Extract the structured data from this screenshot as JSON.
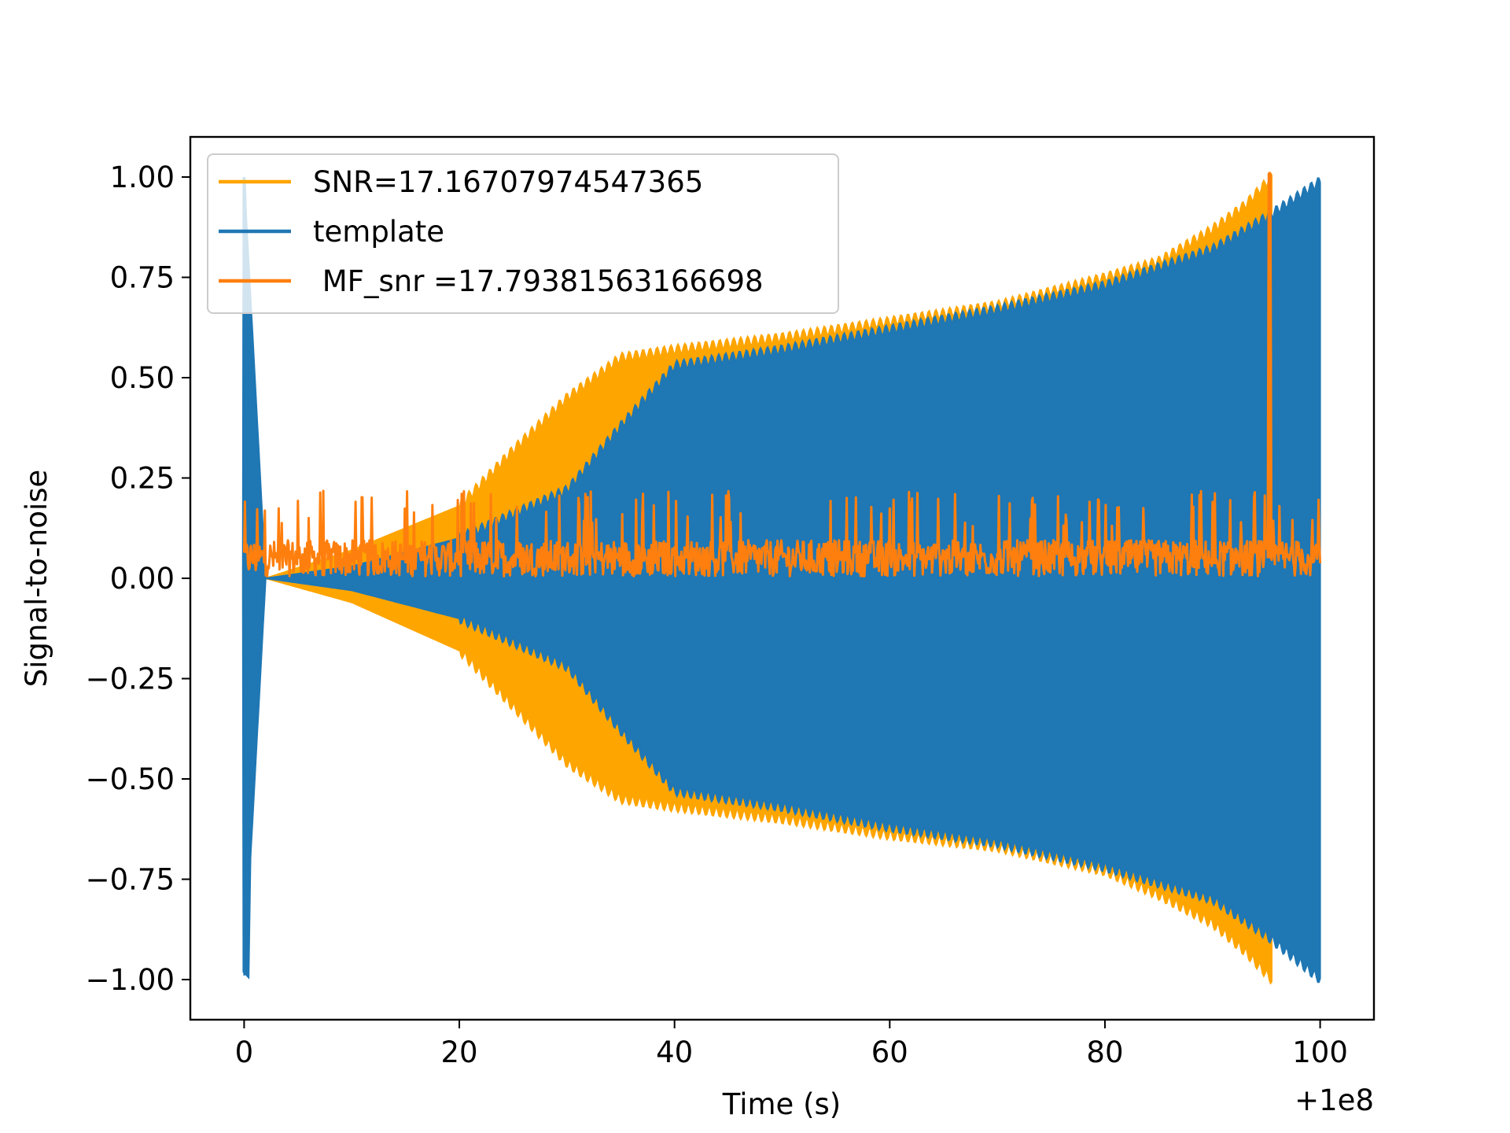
{
  "chart_data": {
    "type": "line",
    "title": "",
    "xlabel": "Time (s)",
    "ylabel": "Signal-to-noise",
    "x_offset_label": "+1e8",
    "xlim": [
      -5,
      105
    ],
    "ylim": [
      -1.1,
      1.1
    ],
    "xticks": [
      0,
      20,
      40,
      60,
      80,
      100
    ],
    "xtick_labels": [
      "0",
      "20",
      "40",
      "60",
      "80",
      "100"
    ],
    "yticks": [
      1.0,
      0.75,
      0.5,
      0.25,
      0.0,
      -0.25,
      -0.5,
      -0.75,
      -1.0
    ],
    "ytick_labels": [
      "1.00",
      "0.75",
      "0.50",
      "0.25",
      "0.00",
      "−0.25",
      "−0.50",
      "−0.75",
      "−1.00"
    ],
    "grid": false,
    "legend_position": "upper-left",
    "series": [
      {
        "name": "SNR=17.16707974547365",
        "color": "#ffa500",
        "kind": "oscillating-envelope",
        "x": [
          0,
          2,
          10,
          20,
          25,
          30,
          35,
          40,
          50,
          60,
          70,
          80,
          85,
          90,
          93,
          95.5
        ],
        "y_upper": [
          0.0,
          0.0,
          0.07,
          0.18,
          0.32,
          0.45,
          0.55,
          0.57,
          0.6,
          0.64,
          0.68,
          0.75,
          0.79,
          0.87,
          0.93,
          1.0
        ],
        "y_lower": [
          0.0,
          0.0,
          -0.06,
          -0.18,
          -0.32,
          -0.46,
          -0.55,
          -0.57,
          -0.6,
          -0.64,
          -0.67,
          -0.73,
          -0.79,
          -0.86,
          -0.93,
          -1.0
        ]
      },
      {
        "name": "template",
        "color": "#1f77b4",
        "kind": "oscillating-envelope",
        "x": [
          0,
          2,
          10,
          20,
          30,
          35,
          40,
          50,
          60,
          70,
          80,
          90,
          95,
          100
        ],
        "y_upper": [
          1.0,
          0.0,
          0.03,
          0.1,
          0.22,
          0.38,
          0.53,
          0.57,
          0.62,
          0.67,
          0.73,
          0.82,
          0.9,
          0.99
        ],
        "y_lower": [
          -0.99,
          0.0,
          -0.03,
          -0.1,
          -0.22,
          -0.38,
          -0.53,
          -0.57,
          -0.62,
          -0.66,
          -0.72,
          -0.8,
          -0.89,
          -1.0
        ]
      },
      {
        "name": " MF_snr =17.79381563166698",
        "color": "#ff7f0e",
        "kind": "noise",
        "x_range": [
          0,
          100
        ],
        "baseline": 0.05,
        "typical_max": 0.13,
        "typical_min": 0.0,
        "spike_x": 95.3,
        "spike_y": 1.01
      }
    ]
  }
}
